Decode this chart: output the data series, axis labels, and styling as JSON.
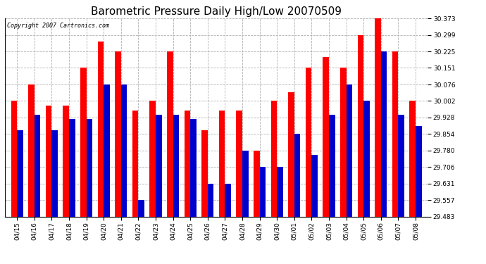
{
  "title": "Barometric Pressure Daily High/Low 20070509",
  "copyright": "Copyright 2007 Cartronics.com",
  "categories": [
    "04/15",
    "04/16",
    "04/17",
    "04/18",
    "04/19",
    "04/20",
    "04/21",
    "04/22",
    "04/23",
    "04/24",
    "04/25",
    "04/26",
    "04/27",
    "04/28",
    "04/29",
    "04/30",
    "05/01",
    "05/02",
    "05/03",
    "05/04",
    "05/05",
    "05/06",
    "05/07",
    "05/08"
  ],
  "highs": [
    30.002,
    30.076,
    29.98,
    29.98,
    30.151,
    30.27,
    30.225,
    29.96,
    30.002,
    30.225,
    29.96,
    29.87,
    29.96,
    29.96,
    29.78,
    30.002,
    30.04,
    30.151,
    30.2,
    30.151,
    30.299,
    30.373,
    30.225,
    30.002
  ],
  "lows": [
    29.87,
    29.94,
    29.87,
    29.92,
    29.92,
    30.076,
    30.076,
    29.557,
    29.94,
    29.94,
    29.92,
    29.631,
    29.631,
    29.78,
    29.706,
    29.706,
    29.854,
    29.76,
    29.94,
    30.076,
    30.002,
    30.225,
    29.94,
    29.89
  ],
  "high_color": "#ff0000",
  "low_color": "#0000cc",
  "bg_color": "#ffffff",
  "plot_bg_color": "#ffffff",
  "grid_color": "#b0b0b0",
  "ylim_min": 29.483,
  "ylim_max": 30.373,
  "yticks": [
    29.483,
    29.557,
    29.631,
    29.706,
    29.78,
    29.854,
    29.928,
    30.002,
    30.076,
    30.151,
    30.225,
    30.299,
    30.373
  ],
  "bar_width": 0.35,
  "title_fontsize": 11,
  "tick_fontsize": 6.5
}
